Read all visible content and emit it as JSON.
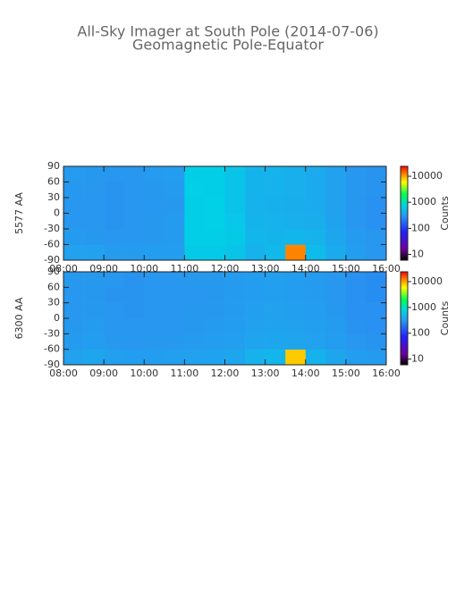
{
  "title": "All-Sky Imager at South Pole (2014-07-06)",
  "subtitle": "Geomagnetic Pole-Equator",
  "chart_data": [
    {
      "type": "heatmap",
      "ylabel": "5577 AA",
      "x": [
        8.25,
        8.75,
        9.25,
        9.75,
        10.25,
        10.75,
        11.25,
        11.75,
        12.25,
        12.75,
        13.25,
        13.75,
        14.25,
        14.75,
        15.25,
        15.75
      ],
      "y": [
        -75,
        -45,
        -15,
        15,
        45,
        75
      ],
      "z": [
        [
          350,
          350,
          320,
          320,
          330,
          330,
          650,
          650,
          600,
          450,
          500,
          12000,
          520,
          400,
          330,
          300
        ],
        [
          320,
          310,
          300,
          300,
          310,
          320,
          700,
          700,
          650,
          480,
          470,
          480,
          450,
          380,
          320,
          300
        ],
        [
          300,
          300,
          290,
          300,
          310,
          320,
          700,
          720,
          620,
          460,
          450,
          430,
          420,
          360,
          300,
          280
        ],
        [
          300,
          300,
          290,
          300,
          300,
          310,
          700,
          720,
          600,
          450,
          440,
          420,
          400,
          350,
          300,
          280
        ],
        [
          310,
          300,
          290,
          300,
          310,
          320,
          720,
          700,
          600,
          460,
          450,
          430,
          400,
          350,
          300,
          290
        ],
        [
          320,
          310,
          300,
          300,
          320,
          330,
          700,
          700,
          600,
          460,
          450,
          430,
          400,
          350,
          300,
          290
        ]
      ],
      "xlim": [
        8,
        16
      ],
      "xticks": [
        {
          "value": 8,
          "label": "08:00"
        },
        {
          "value": 9,
          "label": "09:00"
        },
        {
          "value": 10,
          "label": "10:00"
        },
        {
          "value": 11,
          "label": "11:00"
        },
        {
          "value": 12,
          "label": "12:00"
        },
        {
          "value": 13,
          "label": "13:00"
        },
        {
          "value": 14,
          "label": "14:00"
        },
        {
          "value": 15,
          "label": "15:00"
        },
        {
          "value": 16,
          "label": "16:00"
        }
      ],
      "ylim": [
        -90,
        90
      ],
      "yticks": [
        -90,
        -60,
        -30,
        0,
        30,
        60,
        90
      ],
      "colorbar": {
        "label": "Counts",
        "log": true,
        "lim": [
          6,
          24000
        ],
        "ticks": [
          10,
          100,
          1000,
          10000
        ]
      }
    },
    {
      "type": "heatmap",
      "ylabel": "6300 AA",
      "x": [
        8.25,
        8.75,
        9.25,
        9.75,
        10.25,
        10.75,
        11.25,
        11.75,
        12.25,
        12.75,
        13.25,
        13.75,
        14.25,
        14.75,
        15.25,
        15.75
      ],
      "y": [
        -75,
        -45,
        -15,
        15,
        45,
        75
      ],
      "z": [
        [
          350,
          380,
          340,
          330,
          330,
          340,
          350,
          360,
          380,
          450,
          480,
          8000,
          450,
          380,
          330,
          320
        ],
        [
          320,
          330,
          310,
          300,
          310,
          310,
          320,
          330,
          340,
          370,
          380,
          370,
          350,
          330,
          300,
          290
        ],
        [
          310,
          320,
          300,
          300,
          300,
          300,
          310,
          320,
          330,
          350,
          360,
          350,
          340,
          320,
          290,
          280
        ],
        [
          300,
          310,
          300,
          290,
          300,
          300,
          310,
          310,
          320,
          340,
          350,
          340,
          330,
          310,
          280,
          280
        ],
        [
          300,
          310,
          290,
          290,
          300,
          300,
          300,
          310,
          320,
          330,
          340,
          330,
          320,
          300,
          280,
          270
        ],
        [
          310,
          310,
          300,
          290,
          300,
          300,
          310,
          310,
          320,
          330,
          340,
          330,
          320,
          300,
          280,
          270
        ]
      ],
      "xlim": [
        8,
        16
      ],
      "xticks": [
        {
          "value": 8,
          "label": "08:00"
        },
        {
          "value": 9,
          "label": "09:00"
        },
        {
          "value": 10,
          "label": "10:00"
        },
        {
          "value": 11,
          "label": "11:00"
        },
        {
          "value": 12,
          "label": "12:00"
        },
        {
          "value": 13,
          "label": "13:00"
        },
        {
          "value": 14,
          "label": "14:00"
        },
        {
          "value": 15,
          "label": "15:00"
        },
        {
          "value": 16,
          "label": "16:00"
        }
      ],
      "ylim": [
        -90,
        90
      ],
      "yticks": [
        -90,
        -60,
        -30,
        0,
        30,
        60,
        90
      ],
      "colorbar": {
        "label": "Counts",
        "log": true,
        "lim": [
          6,
          24000
        ],
        "ticks": [
          10,
          100,
          1000,
          10000
        ]
      }
    }
  ]
}
